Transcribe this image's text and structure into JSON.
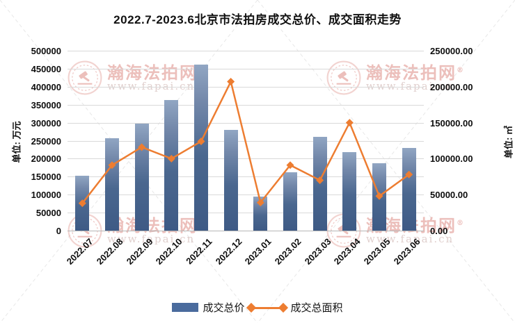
{
  "watermark": {
    "name": "瀚海法拍网",
    "reg": "®",
    "url": "www.fapai.cn"
  },
  "chart_data": {
    "type": "bar",
    "combo": "bar+line",
    "title": "2022.7-2023.6北京市法拍房成交总价、成交面积走势",
    "categories": [
      "2022.07",
      "2022.08",
      "2022.09",
      "2022.10",
      "2022.11",
      "2022.12",
      "2023.01",
      "2023.02",
      "2023.03",
      "2023.04",
      "2023.05",
      "2023.06"
    ],
    "series": [
      {
        "name": "成交总价",
        "type": "bar",
        "axis": "left",
        "unit": "万元",
        "color": "#4a6b9d",
        "values": [
          152000,
          257000,
          298000,
          363000,
          462000,
          279000,
          95000,
          162000,
          261000,
          219000,
          188000,
          229000
        ]
      },
      {
        "name": "成交总面积",
        "type": "line",
        "axis": "right",
        "unit": "㎡",
        "color": "#ed7d31",
        "marker": "diamond",
        "values": [
          38000,
          91000,
          116000,
          100000,
          124000,
          207000,
          39000,
          91000,
          70000,
          150000,
          48000,
          78000
        ]
      }
    ],
    "left_axis": {
      "label": "单位: 万元",
      "min": 0,
      "max": 500000,
      "step": 50000,
      "ticks": [
        "500000",
        "450000",
        "400000",
        "350000",
        "300000",
        "250000",
        "200000",
        "150000",
        "100000",
        "50000",
        "0"
      ]
    },
    "right_axis": {
      "label": "单位: ㎡",
      "min": 0,
      "max": 250000,
      "step": 50000,
      "ticks": [
        "250000.00",
        "200000.00",
        "150000.00",
        "100000.00",
        "50000.00",
        "0.00"
      ]
    },
    "grid": true,
    "legend_position": "bottom"
  }
}
